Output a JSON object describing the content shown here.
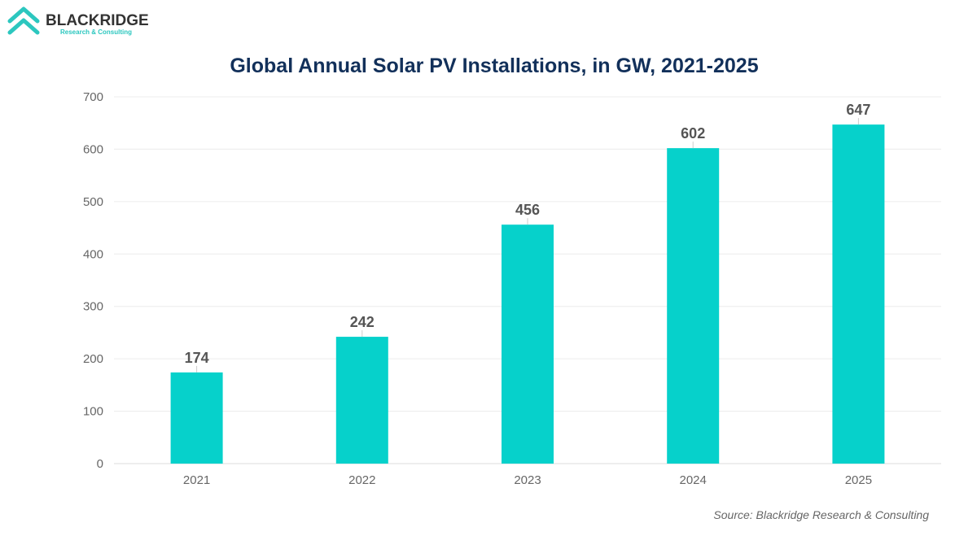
{
  "logo": {
    "name": "BLACKRIDGE",
    "tagline": "Research & Consulting",
    "mark_color": "#2cc7bf"
  },
  "chart_data": {
    "type": "bar",
    "title": "Global Annual Solar PV Installations, in GW, 2021-2025",
    "categories": [
      "2021",
      "2022",
      "2023",
      "2024",
      "2025"
    ],
    "values": [
      174,
      242,
      456,
      602,
      647
    ],
    "data_labels": [
      "174",
      "242",
      "456",
      "602",
      "647"
    ],
    "xlabel": "",
    "ylabel": "",
    "ylim": [
      0,
      700
    ],
    "yticks": [
      0,
      100,
      200,
      300,
      400,
      500,
      600,
      700
    ],
    "grid": true,
    "legend": "none",
    "bar_color": "#06d1cb",
    "source": "Source: Blackridge Research & Consulting"
  }
}
